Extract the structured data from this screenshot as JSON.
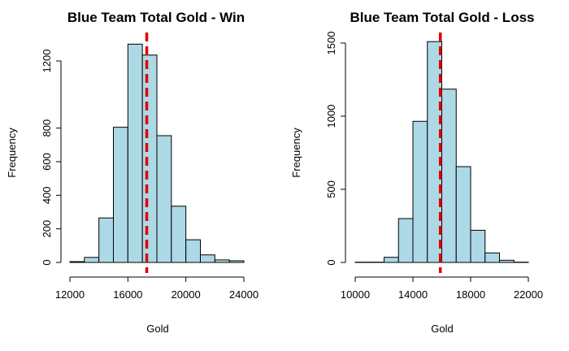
{
  "chart_data": [
    {
      "type": "bar",
      "title": "Blue Team Total Gold - Win",
      "xlabel": "Gold",
      "ylabel": "Frequency",
      "xlim": [
        12000,
        24000
      ],
      "ylim": [
        0,
        1200
      ],
      "x_ticks": [
        12000,
        16000,
        20000,
        24000
      ],
      "y_ticks": [
        0,
        200,
        400,
        600,
        800,
        1200
      ],
      "bin_edges": [
        12000,
        13000,
        14000,
        15000,
        16000,
        17000,
        18000,
        19000,
        20000,
        21000,
        22000,
        23000,
        24000
      ],
      "values": [
        5,
        30,
        265,
        805,
        1300,
        1235,
        755,
        335,
        135,
        45,
        15,
        10
      ],
      "reference_line": 17300,
      "bar_color": "#add8e6",
      "line_color": "#e00000"
    },
    {
      "type": "bar",
      "title": "Blue Team Total Gold - Loss",
      "xlabel": "Gold",
      "ylabel": "Frequency",
      "xlim": [
        10000,
        22000
      ],
      "ylim": [
        0,
        1500
      ],
      "x_ticks": [
        10000,
        14000,
        18000,
        22000
      ],
      "y_ticks": [
        0,
        500,
        1000,
        1500
      ],
      "bin_edges": [
        10000,
        11000,
        12000,
        13000,
        14000,
        15000,
        16000,
        17000,
        18000,
        19000,
        20000,
        21000,
        22000
      ],
      "values": [
        2,
        2,
        35,
        300,
        965,
        1510,
        1185,
        655,
        220,
        65,
        15,
        2
      ],
      "reference_line": 15900,
      "bar_color": "#add8e6",
      "line_color": "#e00000"
    }
  ]
}
